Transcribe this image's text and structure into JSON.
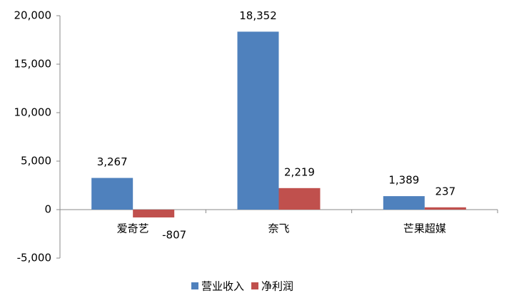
{
  "chart_data": {
    "type": "bar",
    "categories": [
      "爱奇艺",
      "奈飞",
      "芒果超媒"
    ],
    "series": [
      {
        "name": "营业收入",
        "color": "#4f81bd",
        "values": [
          3267,
          18352,
          1389
        ],
        "value_labels": [
          "3,267",
          "18,352",
          "1,389"
        ]
      },
      {
        "name": "净利润",
        "color": "#c0504d",
        "values": [
          -807,
          2219,
          237
        ],
        "value_labels": [
          "-807",
          "2,219",
          "237"
        ]
      }
    ],
    "ylim": [
      -5000,
      20000
    ],
    "yticks": [
      {
        "value": -5000,
        "label": "-5,000"
      },
      0,
      {
        "value": 5000,
        "label": "5,000"
      },
      {
        "value": 10000,
        "label": "10,000"
      },
      {
        "value": 15000,
        "label": "15,000"
      },
      {
        "value": 20000,
        "label": "20,000"
      }
    ],
    "grid": false,
    "legend": "bottom"
  }
}
